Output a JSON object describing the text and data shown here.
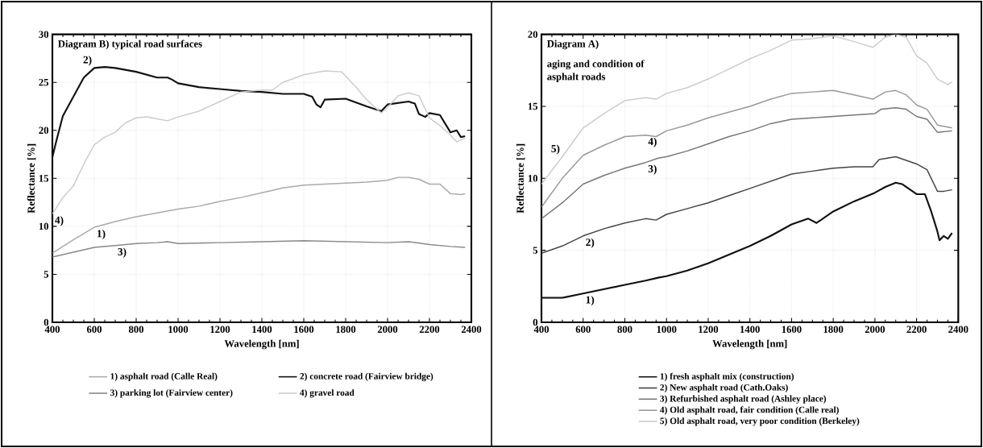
{
  "chart_data": [
    {
      "type": "line",
      "title": "Diagram B) typical road surfaces",
      "xlabel": "Wavelength [nm]",
      "ylabel": "Reflectance [%]",
      "xlim": [
        400,
        2400
      ],
      "ylim": [
        0,
        30
      ],
      "xticks": [
        400,
        600,
        800,
        1000,
        1200,
        1400,
        1600,
        1800,
        2000,
        2200,
        2400
      ],
      "yticks": [
        0,
        5,
        10,
        15,
        20,
        25,
        30
      ],
      "grid": true,
      "legend": "bottom",
      "series": [
        {
          "name": "1) asphalt road (Calle Real)",
          "color": "#aaaaaa",
          "x": [
            400,
            500,
            600,
            700,
            800,
            900,
            1000,
            1100,
            1200,
            1300,
            1400,
            1500,
            1600,
            1700,
            1800,
            1900,
            2000,
            2050,
            2100,
            2150,
            2200,
            2250,
            2300,
            2350,
            2370
          ],
          "values": [
            7.2,
            8.6,
            9.9,
            10.5,
            11.0,
            11.4,
            11.8,
            12.1,
            12.6,
            13.0,
            13.5,
            14.0,
            14.3,
            14.4,
            14.5,
            14.6,
            14.8,
            15.1,
            15.1,
            14.9,
            14.4,
            14.4,
            13.4,
            13.3,
            13.4
          ]
        },
        {
          "name": "2) concrete road (Fairview bridge)",
          "color": "#111111",
          "x": [
            400,
            420,
            450,
            500,
            550,
            600,
            650,
            700,
            800,
            900,
            950,
            970,
            1000,
            1100,
            1200,
            1300,
            1400,
            1500,
            1600,
            1640,
            1660,
            1680,
            1700,
            1800,
            1900,
            1970,
            2000,
            2100,
            2130,
            2150,
            2180,
            2200,
            2250,
            2300,
            2330,
            2350,
            2370
          ],
          "values": [
            17.2,
            19.0,
            21.5,
            23.5,
            25.5,
            26.5,
            26.6,
            26.5,
            26.1,
            25.5,
            25.5,
            25.3,
            24.9,
            24.5,
            24.3,
            24.1,
            24.0,
            23.8,
            23.8,
            23.5,
            22.7,
            22.4,
            23.2,
            23.3,
            22.5,
            22.0,
            22.7,
            23.0,
            22.8,
            21.7,
            21.4,
            21.8,
            21.6,
            19.8,
            20.0,
            19.3,
            19.4
          ]
        },
        {
          "name": "3) parking lot (Fairview center)",
          "color": "#888888",
          "x": [
            400,
            500,
            600,
            700,
            800,
            900,
            950,
            1000,
            1200,
            1400,
            1600,
            1800,
            2000,
            2100,
            2200,
            2300,
            2370
          ],
          "values": [
            6.8,
            7.3,
            7.8,
            8.0,
            8.2,
            8.3,
            8.4,
            8.2,
            8.3,
            8.4,
            8.5,
            8.4,
            8.3,
            8.4,
            8.1,
            7.9,
            7.8
          ]
        },
        {
          "name": "4) gravel road",
          "color": "#cccccc",
          "x": [
            400,
            450,
            500,
            550,
            600,
            650,
            700,
            750,
            800,
            850,
            900,
            950,
            1000,
            1100,
            1200,
            1300,
            1400,
            1450,
            1500,
            1600,
            1700,
            1780,
            1850,
            1900,
            1970,
            2000,
            2050,
            2100,
            2150,
            2200,
            2250,
            2300,
            2330,
            2370
          ],
          "values": [
            11.3,
            13.0,
            14.2,
            16.5,
            18.5,
            19.3,
            19.8,
            20.8,
            21.3,
            21.4,
            21.2,
            21.0,
            21.4,
            22.0,
            23.0,
            24.0,
            24.2,
            24.2,
            25.0,
            25.8,
            26.2,
            26.1,
            24.5,
            23.2,
            21.8,
            22.4,
            23.6,
            23.9,
            23.6,
            21.3,
            20.5,
            19.5,
            18.8,
            19.2
          ]
        }
      ],
      "annotations": [
        {
          "text": "2)",
          "x": 600,
          "y": 26.5
        },
        {
          "text": "4)",
          "x": 400,
          "y": 11.3
        },
        {
          "text": "1)",
          "x": 600,
          "y": 9.9
        },
        {
          "text": "3)",
          "x": 700,
          "y": 8.0
        }
      ]
    },
    {
      "type": "line",
      "title": "Diagram A)",
      "subtitle": "aging and condition of asphalt roads",
      "xlabel": "Wavelength [nm]",
      "ylabel": "Reflectance [%]",
      "xlim": [
        400,
        2400
      ],
      "ylim": [
        0,
        20
      ],
      "xticks": [
        400,
        600,
        800,
        1000,
        1200,
        1400,
        1600,
        1800,
        2000,
        2200,
        2400
      ],
      "yticks": [
        0,
        5,
        10,
        15,
        20
      ],
      "grid": true,
      "legend": "bottom",
      "series": [
        {
          "name": "1) fresh asphalt mix (construction)",
          "color": "#111111",
          "x": [
            400,
            500,
            600,
            700,
            800,
            900,
            960,
            1000,
            1100,
            1200,
            1300,
            1400,
            1500,
            1600,
            1680,
            1720,
            1800,
            1900,
            2000,
            2050,
            2100,
            2130,
            2200,
            2240,
            2270,
            2300,
            2310,
            2330,
            2350,
            2370
          ],
          "values": [
            1.7,
            1.7,
            2.0,
            2.3,
            2.6,
            2.9,
            3.1,
            3.2,
            3.6,
            4.1,
            4.7,
            5.3,
            6.0,
            6.8,
            7.2,
            6.9,
            7.7,
            8.4,
            9.0,
            9.4,
            9.7,
            9.6,
            8.9,
            8.9,
            7.7,
            6.3,
            5.7,
            6.0,
            5.8,
            6.2
          ]
        },
        {
          "name": "2) New asphalt road (Cath.Oaks)",
          "color": "#444444",
          "x": [
            400,
            500,
            600,
            700,
            800,
            900,
            950,
            1000,
            1100,
            1200,
            1300,
            1400,
            1500,
            1600,
            1700,
            1800,
            1900,
            1990,
            2020,
            2100,
            2200,
            2250,
            2300,
            2330,
            2370
          ],
          "values": [
            4.8,
            5.3,
            6.0,
            6.5,
            6.9,
            7.2,
            7.1,
            7.5,
            7.9,
            8.3,
            8.8,
            9.3,
            9.8,
            10.3,
            10.5,
            10.7,
            10.8,
            10.8,
            11.3,
            11.5,
            11.0,
            10.6,
            9.1,
            9.1,
            9.2
          ]
        },
        {
          "name": "3) Refurbished asphalt road (Ashley place)",
          "color": "#777777",
          "x": [
            400,
            500,
            600,
            700,
            800,
            900,
            960,
            1000,
            1100,
            1200,
            1300,
            1400,
            1500,
            1600,
            1700,
            1800,
            1900,
            2000,
            2030,
            2100,
            2150,
            2200,
            2250,
            2300,
            2370
          ],
          "values": [
            7.2,
            8.3,
            9.6,
            10.2,
            10.7,
            11.1,
            11.4,
            11.5,
            11.9,
            12.4,
            12.9,
            13.3,
            13.8,
            14.1,
            14.2,
            14.3,
            14.4,
            14.5,
            14.8,
            14.9,
            14.8,
            14.3,
            14.1,
            13.2,
            13.3
          ]
        },
        {
          "name": "4) Old asphalt road, fair condition (Calle real)",
          "color": "#999999",
          "x": [
            400,
            500,
            600,
            700,
            800,
            900,
            950,
            1000,
            1100,
            1200,
            1300,
            1400,
            1500,
            1600,
            1700,
            1800,
            1900,
            1990,
            2050,
            2100,
            2150,
            2200,
            2250,
            2300,
            2370
          ],
          "values": [
            8.0,
            10.0,
            11.6,
            12.3,
            12.9,
            13.0,
            12.9,
            13.3,
            13.7,
            14.2,
            14.6,
            15.0,
            15.5,
            15.9,
            16.0,
            16.1,
            15.8,
            15.5,
            16.0,
            16.1,
            15.8,
            15.1,
            14.8,
            13.7,
            13.5
          ]
        },
        {
          "name": "5) Old asphalt road, very poor condition (Berkeley)",
          "color": "#cccccc",
          "x": [
            400,
            500,
            600,
            700,
            800,
            900,
            950,
            1000,
            1100,
            1200,
            1300,
            1400,
            1500,
            1600,
            1700,
            1800,
            1900,
            1990,
            2050,
            2100,
            2150,
            2200,
            2250,
            2300,
            2350,
            2370
          ],
          "values": [
            9.6,
            11.5,
            13.5,
            14.5,
            15.4,
            15.6,
            15.5,
            15.9,
            16.3,
            16.9,
            17.6,
            18.3,
            18.9,
            19.6,
            19.7,
            19.9,
            19.5,
            19.1,
            19.8,
            20.0,
            19.8,
            18.5,
            18.0,
            16.9,
            16.5,
            16.7
          ]
        }
      ],
      "annotations": [
        {
          "text": "5)",
          "x": 500,
          "y": 11.5
        },
        {
          "text": "4)",
          "x": 900,
          "y": 13.0
        },
        {
          "text": "3)",
          "x": 900,
          "y": 11.1
        },
        {
          "text": "2)",
          "x": 600,
          "y": 6.0
        },
        {
          "text": "1)",
          "x": 600,
          "y": 2.0
        }
      ]
    }
  ]
}
